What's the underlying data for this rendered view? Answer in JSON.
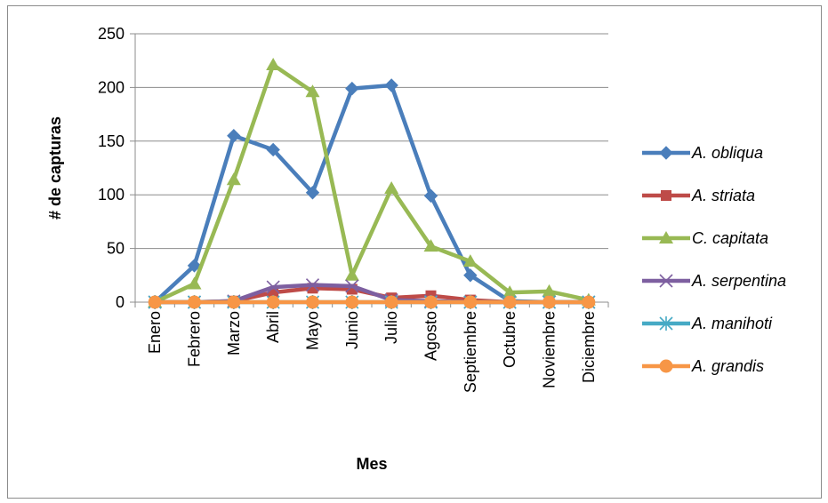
{
  "chart_data": {
    "type": "line",
    "categories": [
      "Enero",
      "Febrero",
      "Marzo",
      "Abril",
      "Mayo",
      "Junio",
      "Julio",
      "Agosto",
      "Septiembre",
      "Octubre",
      "Noviembre",
      "Diciembre"
    ],
    "xlabel": "Mes",
    "ylabel": "# de capturas",
    "ylim": [
      0,
      250
    ],
    "yticks": [
      0,
      50,
      100,
      150,
      200,
      250
    ],
    "grid": true,
    "legend_position": "right",
    "series": [
      {
        "name": "A. obliqua",
        "color": "#4a7ebb",
        "marker": "diamond",
        "values": [
          0,
          34,
          155,
          142,
          102,
          199,
          202,
          99,
          25,
          1,
          0,
          0
        ]
      },
      {
        "name": "A. striata",
        "color": "#be4b48",
        "marker": "square",
        "values": [
          0,
          0,
          1,
          9,
          13,
          12,
          4,
          6,
          2,
          0,
          0,
          0
        ]
      },
      {
        "name": "C. capitata",
        "color": "#98b954",
        "marker": "triangle",
        "values": [
          0,
          17,
          114,
          221,
          196,
          25,
          106,
          52,
          38,
          9,
          10,
          2
        ]
      },
      {
        "name": "A. serpentina",
        "color": "#7d5fa0",
        "marker": "x",
        "values": [
          0,
          0,
          1,
          14,
          16,
          15,
          2,
          1,
          0,
          0,
          0,
          0
        ]
      },
      {
        "name": "A. manihoti",
        "color": "#46aac5",
        "marker": "asterisk",
        "values": [
          0,
          0,
          0,
          0,
          0,
          0,
          0,
          0,
          0,
          0,
          0,
          0
        ]
      },
      {
        "name": "A. grandis",
        "color": "#f79646",
        "marker": "circle",
        "values": [
          0,
          0,
          0,
          0,
          0,
          0,
          0,
          0,
          0,
          0,
          0,
          0
        ]
      }
    ]
  }
}
